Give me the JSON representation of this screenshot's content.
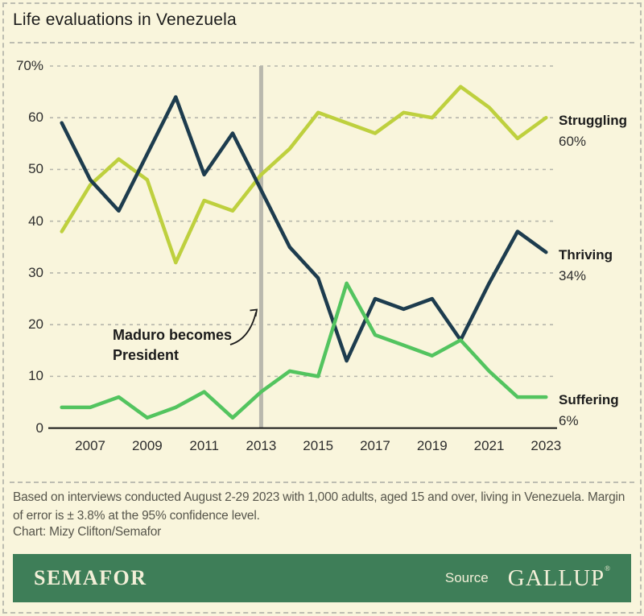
{
  "title": "Life evaluations in Venezuela",
  "chart_data": {
    "type": "line",
    "title": "Life evaluations in Venezuela",
    "x": [
      2006,
      2007,
      2008,
      2009,
      2010,
      2011,
      2012,
      2013,
      2014,
      2015,
      2016,
      2017,
      2018,
      2019,
      2020,
      2021,
      2022,
      2023
    ],
    "series": [
      {
        "name": "Struggling",
        "end_value_label": "60%",
        "color": "#bed03e",
        "values": [
          38,
          47,
          52,
          48,
          32,
          44,
          42,
          49,
          54,
          61,
          59,
          57,
          61,
          60,
          66,
          62,
          56,
          60
        ]
      },
      {
        "name": "Thriving",
        "end_value_label": "34%",
        "color": "#1d3c4e",
        "values": [
          59,
          48,
          42,
          53,
          64,
          49,
          57,
          46,
          35,
          29,
          13,
          25,
          23,
          25,
          17,
          28,
          38,
          34
        ]
      },
      {
        "name": "Suffering",
        "end_value_label": "6%",
        "color": "#53c45f",
        "values": [
          4,
          4,
          6,
          2,
          4,
          7,
          2,
          7,
          11,
          10,
          28,
          18,
          16,
          14,
          17,
          11,
          6,
          6
        ]
      }
    ],
    "ylim": [
      0,
      70
    ],
    "yticks": [
      "70%",
      "60",
      "50",
      "40",
      "30",
      "20",
      "10",
      "0"
    ],
    "ytick_values": [
      70,
      60,
      50,
      40,
      30,
      20,
      10,
      0
    ],
    "xticks": [
      2007,
      2009,
      2011,
      2013,
      2015,
      2017,
      2019,
      2021,
      2023
    ],
    "grid": "horizontal-dashed",
    "grid_color": "#b6b6ab",
    "axis_color": "#161616",
    "event_line": {
      "year": 2013,
      "color": "#b9b8ad"
    },
    "legend_position": "right-of-line-ends"
  },
  "annotation": {
    "line1": "Maduro becomes",
    "line2": "President"
  },
  "footer": {
    "note": "Based on interviews conducted August 2-29 2023 with 1,000 adults, aged 15 and over, living in Venezuela. Margin of error is ± 3.8% at the 95% confidence level.",
    "credit": "Chart: Mizy Clifton/Semafor"
  },
  "brandbar": {
    "wordmark": "SEMAFOR",
    "source_label": "Source",
    "source_name": "GALLUP",
    "registered_mark": "®",
    "bar_color": "#3e7e58",
    "text_color": "#f3efd8"
  }
}
